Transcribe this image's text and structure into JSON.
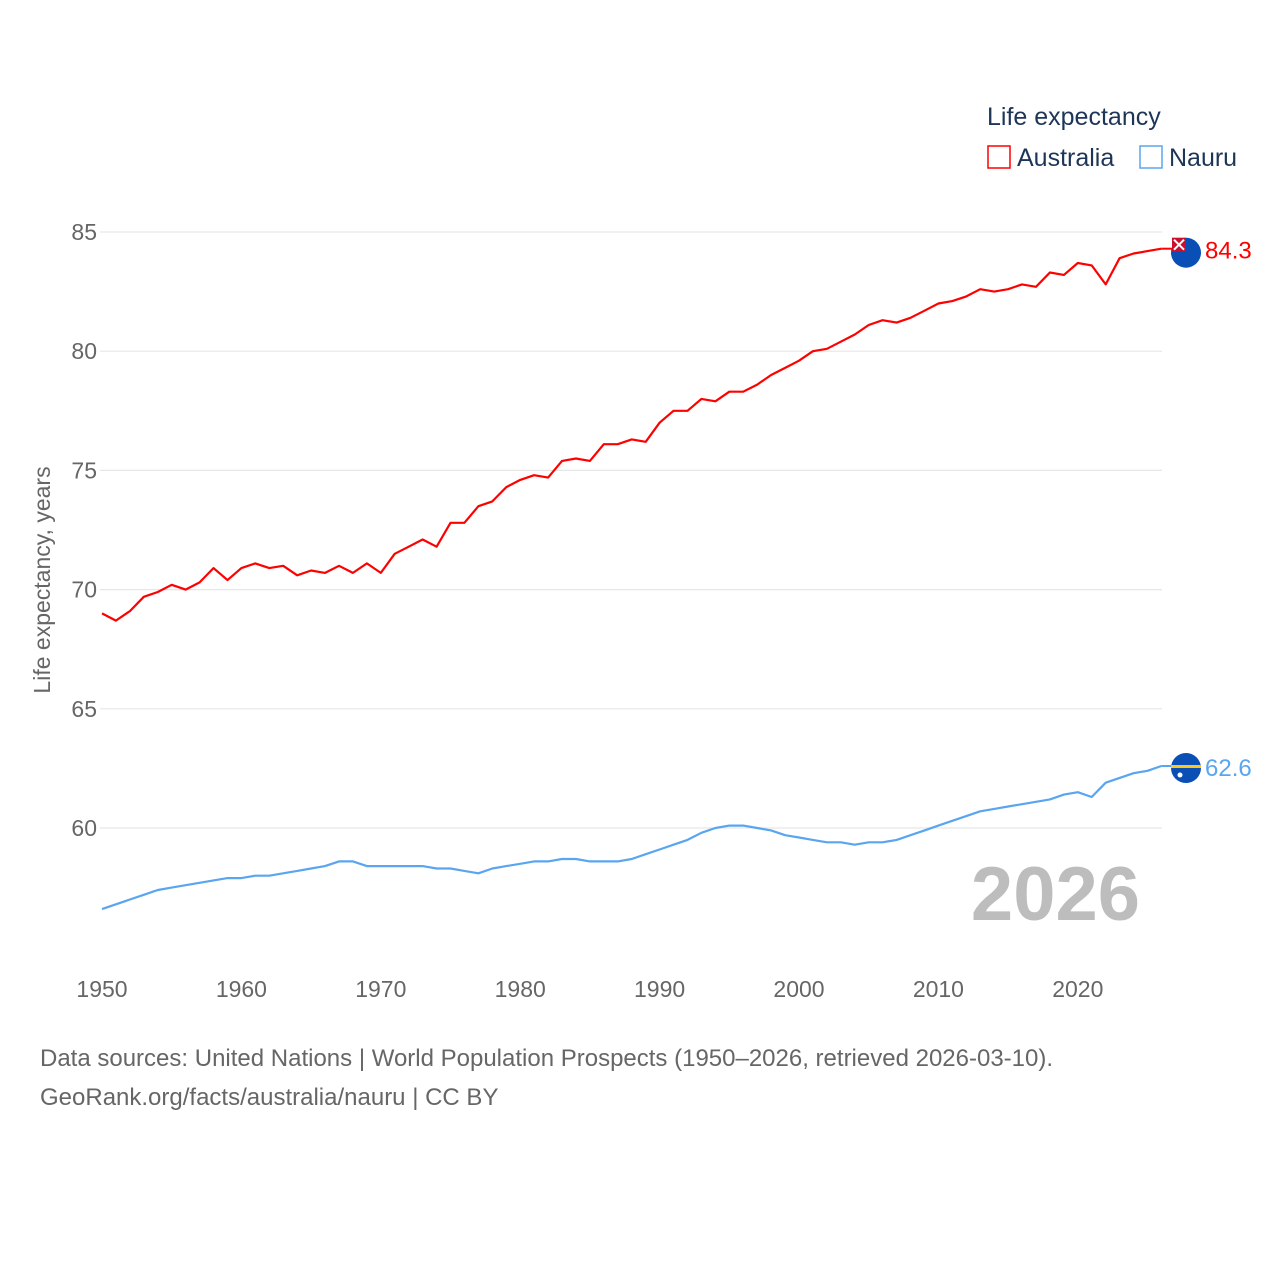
{
  "chart_data": {
    "type": "line",
    "title": "",
    "legend_title": "Life expectancy",
    "legend_position": "top-right",
    "ylabel": "Life expectancy, years",
    "xlabel": "",
    "ylim": [
      56,
      85
    ],
    "xlim": [
      1950,
      2026
    ],
    "grid": true,
    "yticks": [
      60,
      65,
      70,
      75,
      80,
      85
    ],
    "xticks": [
      1950,
      1960,
      1970,
      1980,
      1990,
      2000,
      2010,
      2020
    ],
    "year_label": "2026",
    "x": [
      1950,
      1951,
      1952,
      1953,
      1954,
      1955,
      1956,
      1957,
      1958,
      1959,
      1960,
      1961,
      1962,
      1963,
      1964,
      1965,
      1966,
      1967,
      1968,
      1969,
      1970,
      1971,
      1972,
      1973,
      1974,
      1975,
      1976,
      1977,
      1978,
      1979,
      1980,
      1981,
      1982,
      1983,
      1984,
      1985,
      1986,
      1987,
      1988,
      1989,
      1990,
      1991,
      1992,
      1993,
      1994,
      1995,
      1996,
      1997,
      1998,
      1999,
      2000,
      2001,
      2002,
      2003,
      2004,
      2005,
      2006,
      2007,
      2008,
      2009,
      2010,
      2011,
      2012,
      2013,
      2014,
      2015,
      2016,
      2017,
      2018,
      2019,
      2020,
      2021,
      2022,
      2023,
      2024,
      2025,
      2026
    ],
    "series": [
      {
        "name": "Australia",
        "color": "#ff0000",
        "end_label": "84.3",
        "values": [
          69.0,
          68.7,
          69.1,
          69.7,
          69.9,
          70.2,
          70.0,
          70.3,
          70.9,
          70.4,
          70.9,
          71.1,
          70.9,
          71.0,
          70.6,
          70.8,
          70.7,
          71.0,
          70.7,
          71.1,
          70.7,
          71.5,
          71.8,
          72.1,
          71.8,
          72.8,
          72.8,
          73.5,
          73.7,
          74.3,
          74.6,
          74.8,
          74.7,
          75.4,
          75.5,
          75.4,
          76.1,
          76.1,
          76.3,
          76.2,
          77.0,
          77.5,
          77.5,
          78.0,
          77.9,
          78.3,
          78.3,
          78.6,
          79.0,
          79.3,
          79.6,
          80.0,
          80.1,
          80.4,
          80.7,
          81.1,
          81.3,
          81.2,
          81.4,
          81.7,
          82.0,
          82.1,
          82.3,
          82.6,
          82.5,
          82.6,
          82.8,
          82.7,
          83.3,
          83.2,
          83.7,
          83.6,
          82.8,
          83.9,
          84.1,
          84.2,
          84.3
        ]
      },
      {
        "name": "Nauru",
        "color": "#5aa5ef",
        "end_label": "62.6",
        "values": [
          56.6,
          56.8,
          57.0,
          57.2,
          57.4,
          57.5,
          57.6,
          57.7,
          57.8,
          57.9,
          57.9,
          58.0,
          58.0,
          58.1,
          58.2,
          58.3,
          58.4,
          58.6,
          58.6,
          58.4,
          58.4,
          58.4,
          58.4,
          58.4,
          58.3,
          58.3,
          58.2,
          58.1,
          58.3,
          58.4,
          58.5,
          58.6,
          58.6,
          58.7,
          58.7,
          58.6,
          58.6,
          58.6,
          58.7,
          58.9,
          59.1,
          59.3,
          59.5,
          59.8,
          60.0,
          60.1,
          60.1,
          60.0,
          59.9,
          59.7,
          59.6,
          59.5,
          59.4,
          59.4,
          59.3,
          59.4,
          59.4,
          59.5,
          59.7,
          59.9,
          60.1,
          60.3,
          60.5,
          60.7,
          60.8,
          60.9,
          61.0,
          61.1,
          61.2,
          61.4,
          61.5,
          61.3,
          61.9,
          62.1,
          62.3,
          62.4,
          62.6
        ]
      }
    ]
  },
  "footer": {
    "line1": "Data sources: United Nations | World Population Prospects (1950–2026, retrieved 2026-03-10).",
    "line2": "GeoRank.org/facts/australia/nauru | CC BY"
  }
}
